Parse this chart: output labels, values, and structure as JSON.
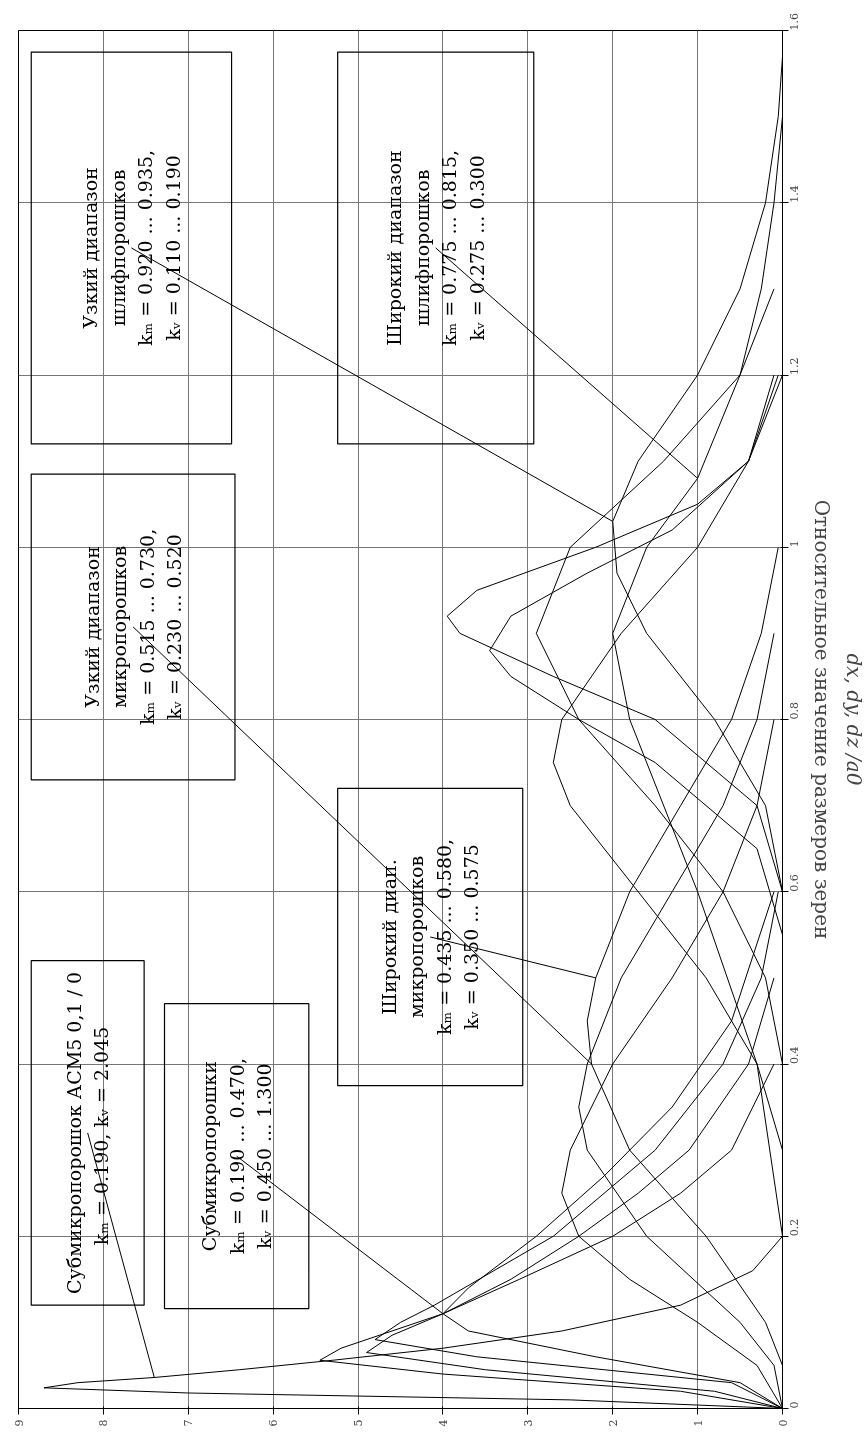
{
  "chart_data": {
    "type": "line",
    "ylabel": "Относительное значение размеров зерен",
    "xlim": [
      9,
      0
    ],
    "ylim": [
      0,
      1.6
    ],
    "xticks": [
      9,
      8,
      7,
      6,
      5,
      4,
      3,
      2,
      1,
      0
    ],
    "yticks": [
      0,
      0.2,
      0.4,
      0.6,
      0.8,
      1,
      1.2,
      1.4,
      1.6
    ],
    "grid": true,
    "series": [
      {
        "color": "#000000",
        "values": [
          0,
          0.01,
          0.018,
          0.024,
          0.03,
          0.036,
          0.045,
          0.056,
          0.07,
          0.09,
          0.12,
          0.16,
          0.2
        ],
        "x": [
          0,
          2.5,
          7,
          8.7,
          8.3,
          7.4,
          6.4,
          5.3,
          4.0,
          2.6,
          1.2,
          0.35,
          0
        ]
      },
      {
        "color": "#000000",
        "values": [
          0,
          0.02,
          0.04,
          0.056,
          0.07,
          0.09,
          0.11,
          0.15,
          0.2,
          0.25,
          0.3,
          0.4
        ],
        "x": [
          0,
          1.2,
          4.0,
          5.45,
          5.2,
          4.6,
          4.0,
          3.1,
          2.0,
          1.2,
          0.6,
          0.1
        ]
      },
      {
        "color": "#000000",
        "values": [
          0,
          0.02,
          0.045,
          0.065,
          0.085,
          0.11,
          0.15,
          0.2,
          0.25,
          0.3,
          0.4,
          0.5
        ],
        "x": [
          0,
          0.8,
          3.5,
          4.9,
          4.6,
          4.0,
          3.2,
          2.4,
          1.7,
          1.1,
          0.4,
          0.1
        ]
      },
      {
        "color": "#000000",
        "values": [
          0,
          0.03,
          0.06,
          0.08,
          0.1,
          0.12,
          0.16,
          0.2,
          0.25,
          0.3,
          0.4,
          0.5,
          0.6
        ],
        "x": [
          0,
          0.6,
          3.6,
          4.8,
          4.5,
          4.1,
          3.4,
          2.7,
          2.1,
          1.5,
          0.7,
          0.25,
          0.05
        ]
      },
      {
        "color": "#000000",
        "values": [
          0,
          0.03,
          0.06,
          0.09,
          0.11,
          0.14,
          0.2,
          0.27,
          0.35,
          0.45,
          0.6
        ],
        "x": [
          0,
          0.5,
          2.2,
          3.7,
          4.0,
          3.7,
          2.9,
          2.1,
          1.3,
          0.6,
          0.1
        ]
      },
      {
        "color": "#000000",
        "values": [
          0,
          0.05,
          0.1,
          0.15,
          0.2,
          0.25,
          0.3,
          0.4,
          0.5,
          0.6,
          0.7,
          0.8
        ],
        "x": [
          0,
          0.3,
          1.0,
          1.8,
          2.4,
          2.6,
          2.5,
          2.0,
          1.3,
          0.7,
          0.3,
          0.1
        ]
      },
      {
        "color": "#000000",
        "values": [
          0,
          0.05,
          0.1,
          0.2,
          0.3,
          0.35,
          0.4,
          0.5,
          0.6,
          0.7,
          0.8,
          0.9
        ],
        "x": [
          0,
          0.1,
          0.5,
          1.6,
          2.3,
          2.4,
          2.3,
          1.9,
          1.3,
          0.7,
          0.3,
          0.1
        ]
      },
      {
        "color": "#000000",
        "values": [
          0.05,
          0.1,
          0.2,
          0.3,
          0.4,
          0.45,
          0.5,
          0.6,
          0.7,
          0.8,
          0.9,
          1.0
        ],
        "x": [
          0,
          0.2,
          0.9,
          1.8,
          2.25,
          2.3,
          2.2,
          1.8,
          1.2,
          0.6,
          0.25,
          0.05
        ]
      },
      {
        "color": "#000000",
        "values": [
          0.3,
          0.4,
          0.5,
          0.6,
          0.7,
          0.75,
          0.8,
          0.9,
          1.0,
          1.1,
          1.2
        ],
        "x": [
          0,
          0.3,
          0.9,
          1.7,
          2.5,
          2.7,
          2.6,
          1.9,
          1.0,
          0.4,
          0.1
        ]
      },
      {
        "color": "#000000",
        "values": [
          0.4,
          0.5,
          0.6,
          0.7,
          0.8,
          0.9,
          1.0,
          1.1,
          1.2,
          1.3
        ],
        "x": [
          0,
          0.2,
          0.7,
          1.5,
          2.4,
          2.9,
          2.5,
          1.4,
          0.5,
          0.1
        ]
      },
      {
        "color": "#000000",
        "values": [
          0.55,
          0.65,
          0.75,
          0.8,
          0.85,
          0.88,
          0.92,
          0.97,
          1.02,
          1.1,
          1.2
        ],
        "x": [
          0,
          0.3,
          1.5,
          2.4,
          3.2,
          3.45,
          3.2,
          2.3,
          1.3,
          0.4,
          0.05
        ]
      },
      {
        "color": "#000000",
        "values": [
          0.6,
          0.7,
          0.8,
          0.85,
          0.9,
          0.92,
          0.95,
          1.0,
          1.05,
          1.1,
          1.2
        ],
        "x": [
          0,
          0.3,
          1.5,
          2.7,
          3.8,
          3.95,
          3.6,
          2.2,
          1.0,
          0.4,
          0
        ]
      },
      {
        "color": "#000000",
        "values": [
          0.6,
          0.7,
          0.8,
          0.9,
          0.97,
          1.03,
          1.1,
          1.2,
          1.3,
          1.4,
          1.5,
          1.57
        ],
        "x": [
          0,
          0.2,
          0.8,
          1.6,
          1.95,
          2.0,
          1.7,
          1.0,
          0.5,
          0.2,
          0.05,
          0
        ]
      },
      {
        "color": "#000000",
        "values": [
          0.2,
          0.4,
          0.6,
          0.8,
          0.9,
          1.0,
          1.08,
          1.2,
          1.3,
          1.4,
          1.5
        ],
        "x": [
          0,
          0.3,
          1.0,
          1.8,
          2.0,
          1.6,
          1.0,
          0.5,
          0.25,
          0.1,
          0
        ]
      }
    ],
    "annotations": [
      {
        "text": "Субмикропорошок АСМ5 0,1 / 0\nkₘ = 0.190,  kᵥ = 2.045",
        "x": 7.4,
        "y": 0.036
      },
      {
        "text": "Субмикропорошки\nkₘ = 0.190 ... 0.470,\nkᵥ = 0.450 ... 1.300",
        "x": 4.0,
        "y": 0.11
      },
      {
        "text": "Широкий диап.\nмикропорошков\nkₘ = 0.435 ... 0.580,\nkᵥ = 0.350 ... 0.575",
        "x": 2.2,
        "y": 0.5
      },
      {
        "text": "Узкий диапазон\nмикропорошков\nkₘ = 0.515 ... 0.730,\nkᵥ = 0.230 ... 0.520",
        "x": 2.25,
        "y": 0.4
      },
      {
        "text": "Узкий диапазон\nшлифпорошков\nkₘ = 0.920 ... 0.935,\nkᵥ = 0.110 ... 0.190",
        "x": 2.0,
        "y": 1.03
      },
      {
        "text": "Широкий диапазон\nшлифпорошков\nkₘ = 0.775 ... 0.815,\nkᵥ = 0.275 ... 0.300",
        "x": 1.0,
        "y": 1.08
      },
      "dx, dy, dz /a0"
    ]
  }
}
